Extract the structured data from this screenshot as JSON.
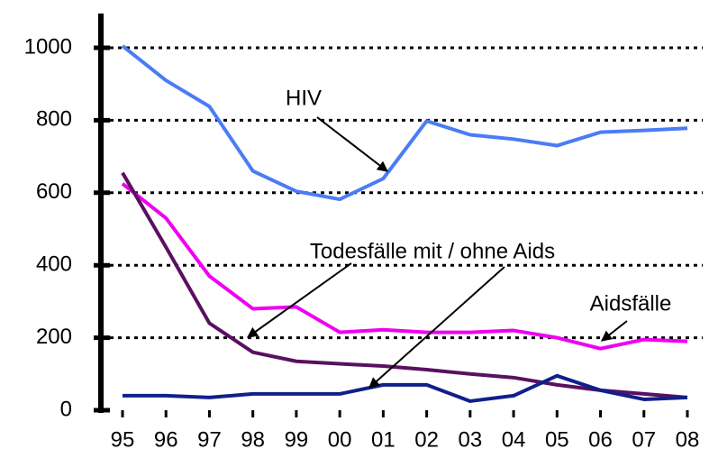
{
  "chart_data": {
    "type": "line",
    "categories": [
      "95",
      "96",
      "97",
      "98",
      "99",
      "00",
      "01",
      "02",
      "03",
      "04",
      "05",
      "06",
      "07",
      "08"
    ],
    "series": [
      {
        "name": "HIV",
        "color": "#4a7cf5",
        "values": [
          1005,
          910,
          838,
          660,
          604,
          582,
          639,
          798,
          760,
          748,
          730,
          767,
          772,
          778
        ]
      },
      {
        "name": "Aidsfälle",
        "color": "#f000f0",
        "values": [
          625,
          530,
          370,
          280,
          285,
          215,
          222,
          215,
          215,
          220,
          200,
          170,
          195,
          190
        ]
      },
      {
        "color": "#5a1060",
        "values": [
          655,
          450,
          240,
          160,
          135,
          128,
          122,
          112,
          100,
          90,
          70,
          55,
          45,
          35
        ]
      },
      {
        "color": "#10208a",
        "values": [
          40,
          40,
          35,
          45,
          45,
          45,
          70,
          70,
          25,
          40,
          95,
          55,
          30,
          35
        ]
      }
    ],
    "annotations": [
      "Todesfälle mit / ohne Aids"
    ],
    "ylim": [
      0,
      1000
    ],
    "yticks": [
      0,
      200,
      400,
      600,
      800,
      1000
    ],
    "grid": true
  }
}
